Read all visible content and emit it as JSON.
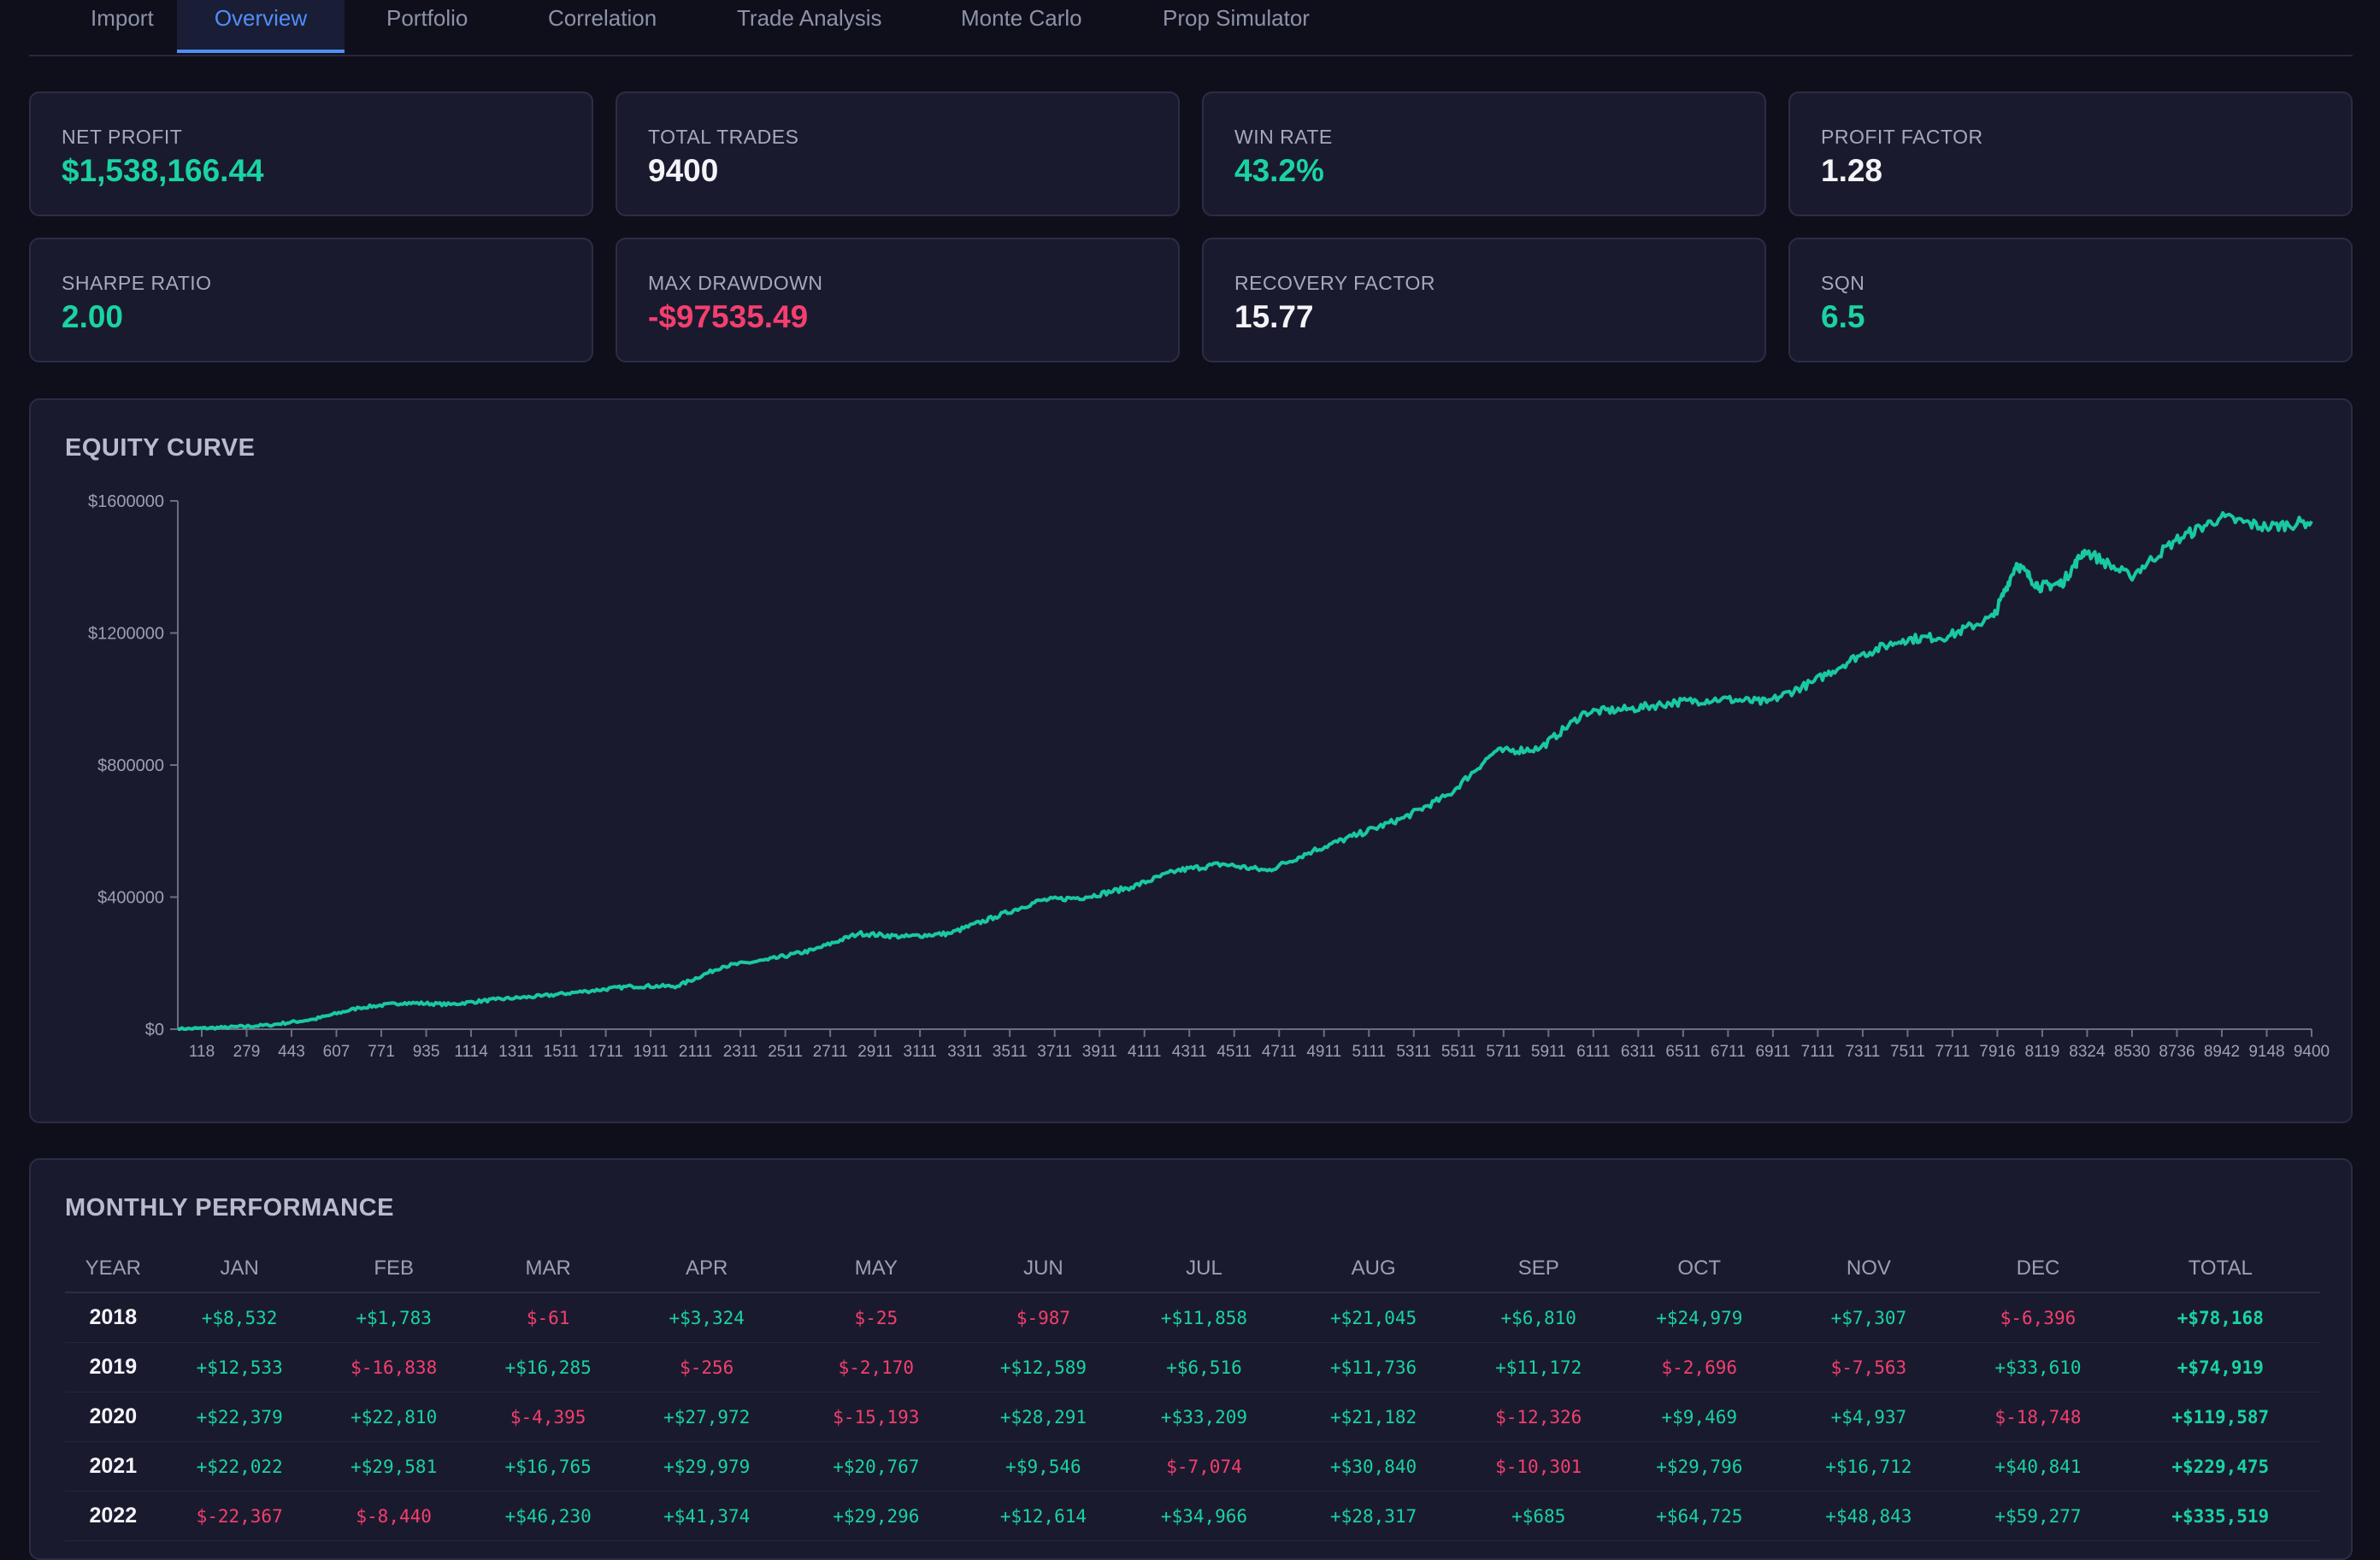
{
  "tabs": [
    {
      "label": "Import",
      "active": false
    },
    {
      "label": "Overview",
      "active": true
    },
    {
      "label": "Portfolio",
      "active": false
    },
    {
      "label": "Correlation",
      "active": false
    },
    {
      "label": "Trade Analysis",
      "active": false
    },
    {
      "label": "Monte Carlo",
      "active": false
    },
    {
      "label": "Prop Simulator",
      "active": false
    }
  ],
  "stats": [
    {
      "label": "NET PROFIT",
      "value": "$1,538,166.44",
      "tone": "pos"
    },
    {
      "label": "TOTAL TRADES",
      "value": "9400",
      "tone": "neu"
    },
    {
      "label": "WIN RATE",
      "value": "43.2%",
      "tone": "pos"
    },
    {
      "label": "PROFIT FACTOR",
      "value": "1.28",
      "tone": "neu"
    },
    {
      "label": "SHARPE RATIO",
      "value": "2.00",
      "tone": "pos"
    },
    {
      "label": "MAX DRAWDOWN",
      "value": "-$97535.49",
      "tone": "neg"
    },
    {
      "label": "RECOVERY FACTOR",
      "value": "15.77",
      "tone": "neu"
    },
    {
      "label": "SQN",
      "value": "6.5",
      "tone": "pos"
    }
  ],
  "equity_title": "EQUITY CURVE",
  "monthly_title": "MONTHLY PERFORMANCE",
  "colors": {
    "background": "#0f0f1c",
    "card": "#1a1a2e",
    "accent": "#4f8ff7",
    "positive": "#19d3a2",
    "negative": "#f43f6e",
    "line": "#19c9a0"
  },
  "chart_data": {
    "type": "line",
    "title": "EQUITY CURVE",
    "xlabel": "",
    "ylabel": "",
    "xlim": [
      0,
      9400
    ],
    "ylim": [
      0,
      1600000
    ],
    "y_ticks": [
      0,
      400000,
      800000,
      1200000,
      1600000
    ],
    "y_tick_labels": [
      "$0",
      "$400000",
      "$800000",
      "$1200000",
      "$1600000"
    ],
    "x_tick_labels": [
      "118",
      "279",
      "443",
      "607",
      "771",
      "935",
      "1114",
      "1311",
      "1511",
      "1711",
      "1911",
      "2111",
      "2311",
      "2511",
      "2711",
      "2911",
      "3111",
      "3311",
      "3511",
      "3711",
      "3911",
      "4111",
      "4311",
      "4511",
      "4711",
      "4911",
      "5111",
      "5311",
      "5511",
      "5711",
      "5911",
      "6111",
      "6311",
      "6511",
      "6711",
      "6911",
      "7111",
      "7311",
      "7511",
      "7711",
      "7916",
      "8119",
      "8324",
      "8530",
      "8736",
      "8942",
      "9148",
      "9400"
    ],
    "grid": false,
    "series": [
      {
        "x": [
          0,
          200,
          400,
          600,
          800,
          1000,
          1200,
          1400,
          1600,
          1800,
          2000,
          2200,
          2400,
          2600,
          2800,
          3000,
          3200,
          3400,
          3600,
          3800,
          4000,
          4200,
          4400,
          4600,
          4800,
          5000,
          5200,
          5400,
          5600,
          5800,
          6000,
          6200,
          6400,
          6600,
          6800,
          7000,
          7200,
          7400,
          7600,
          7800,
          8000,
          8100,
          8200,
          8300,
          8400,
          8600,
          8800,
          9000,
          9200,
          9400
        ],
        "y": [
          0,
          5000,
          12000,
          30000,
          65000,
          80000,
          75000,
          90000,
          100000,
          115000,
          130000,
          130000,
          190000,
          210000,
          240000,
          290000,
          280000,
          290000,
          340000,
          390000,
          400000,
          430000,
          480000,
          500000,
          480000,
          540000,
          590000,
          640000,
          710000,
          840000,
          850000,
          960000,
          970000,
          990000,
          1000000,
          990000,
          1050000,
          1130000,
          1180000,
          1190000,
          1250000,
          1410000,
          1340000,
          1350000,
          1450000,
          1370000,
          1480000,
          1550000,
          1520000,
          1538166
        ]
      }
    ]
  },
  "monthly": {
    "headers": [
      "YEAR",
      "JAN",
      "FEB",
      "MAR",
      "APR",
      "MAY",
      "JUN",
      "JUL",
      "AUG",
      "SEP",
      "OCT",
      "NOV",
      "DEC",
      "TOTAL"
    ],
    "rows": [
      [
        "2018",
        "+$8,532",
        "+$1,783",
        "$-61",
        "+$3,324",
        "$-25",
        "$-987",
        "+$11,858",
        "+$21,045",
        "+$6,810",
        "+$24,979",
        "+$7,307",
        "$-6,396",
        "+$78,168"
      ],
      [
        "2019",
        "+$12,533",
        "$-16,838",
        "+$16,285",
        "$-256",
        "$-2,170",
        "+$12,589",
        "+$6,516",
        "+$11,736",
        "+$11,172",
        "$-2,696",
        "$-7,563",
        "+$33,610",
        "+$74,919"
      ],
      [
        "2020",
        "+$22,379",
        "+$22,810",
        "$-4,395",
        "+$27,972",
        "$-15,193",
        "+$28,291",
        "+$33,209",
        "+$21,182",
        "$-12,326",
        "+$9,469",
        "+$4,937",
        "$-18,748",
        "+$119,587"
      ],
      [
        "2021",
        "+$22,022",
        "+$29,581",
        "+$16,765",
        "+$29,979",
        "+$20,767",
        "+$9,546",
        "$-7,074",
        "+$30,840",
        "$-10,301",
        "+$29,796",
        "+$16,712",
        "+$40,841",
        "+$229,475"
      ],
      [
        "2022",
        "$-22,367",
        "$-8,440",
        "+$46,230",
        "+$41,374",
        "+$29,296",
        "+$12,614",
        "+$34,966",
        "+$28,317",
        "+$685",
        "+$64,725",
        "+$48,843",
        "+$59,277",
        "+$335,519"
      ]
    ]
  }
}
